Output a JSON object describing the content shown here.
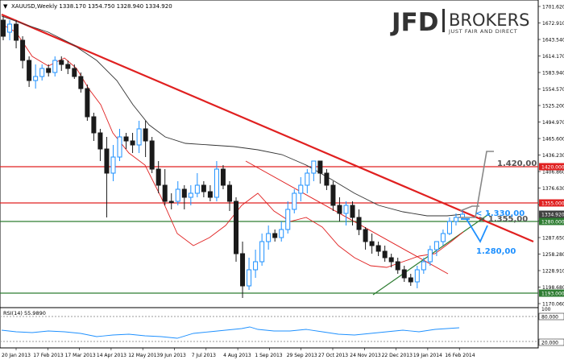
{
  "header": {
    "symbol_line": "XAUUSD,Weekly  1338.170 1354.750 1328.940 1334.920",
    "logo_main": "JFD",
    "logo_brand": "BROKERS",
    "logo_tagline": "JUST FAIR AND DIRECT"
  },
  "y_axis_labels": [
    "1701.620",
    "1672.910",
    "1643.540",
    "1614.170",
    "1583.940",
    "1554.570",
    "1525.200",
    "1494.970",
    "1465.600",
    "1436.230",
    "1406.860",
    "1376.630",
    "1347.260",
    "1317.880",
    "1287.650",
    "1258.280",
    "1228.910",
    "1198.680",
    "1170.060"
  ],
  "price_tags": [
    {
      "text": "1420.000",
      "bg": "#e02020"
    },
    {
      "text": "1355.000",
      "bg": "#e02020"
    },
    {
      "text": "1334.920",
      "bg": "#404040"
    },
    {
      "text": "1280.000",
      "bg": "#2e7d32"
    },
    {
      "text": "1193.000",
      "bg": "#2e7d32"
    }
  ],
  "annotations": {
    "a1420": "1.420,00",
    "a1355": "> 1.355,00",
    "a1330": "< 1.330,00",
    "a1280": "1.280,00"
  },
  "rsi": {
    "label": "RSI(14) 55.9890",
    "level_high": "80.000",
    "level_low": "20.000",
    "scale_top": "100"
  },
  "x_axis_labels": [
    "20 Jan 2013",
    "17 Feb 2013",
    "17 Mar 2013",
    "14 Apr 2013",
    "12 May 2013",
    "9 Jun 2013",
    "7 Jul 2013",
    "4 Aug 2013",
    "1 Sep 2013",
    "29 Sep 2013",
    "27 Oct 2013",
    "24 Nov 2013",
    "22 Dec 2013",
    "19 Jan 2014",
    "16 Feb 2014"
  ],
  "colors": {
    "bull": "#1e90ff",
    "bear": "#1a1a1a",
    "trend": "#e02020",
    "support": "#2e7d32",
    "annot_blue": "#1e90ff",
    "annot_gray": "#888888"
  }
}
